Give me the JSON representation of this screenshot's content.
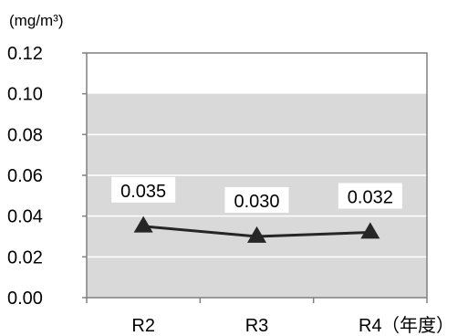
{
  "chart_data": {
    "type": "line",
    "title": "",
    "ylabel": "(mg/m³)",
    "xlabel": "（年度）",
    "categories": [
      "R2",
      "R3",
      "R4"
    ],
    "series": [
      {
        "values": [
          0.035,
          0.03,
          0.032
        ],
        "marker": "triangle",
        "color": "#262626"
      }
    ],
    "data_labels": [
      "0.035",
      "0.030",
      "0.032"
    ],
    "ylim": [
      0,
      0.12
    ],
    "yticks": [
      "0.00",
      "0.02",
      "0.04",
      "0.06",
      "0.08",
      "0.10",
      "0.12"
    ],
    "grid": true,
    "legend": "none",
    "colors": {
      "plot_background": "#d9d9d9",
      "upper_background": "#ffffff",
      "gridline": "#ffffff",
      "axis": "#808080",
      "line": "#262626"
    },
    "upper_band_from": 0.1
  }
}
